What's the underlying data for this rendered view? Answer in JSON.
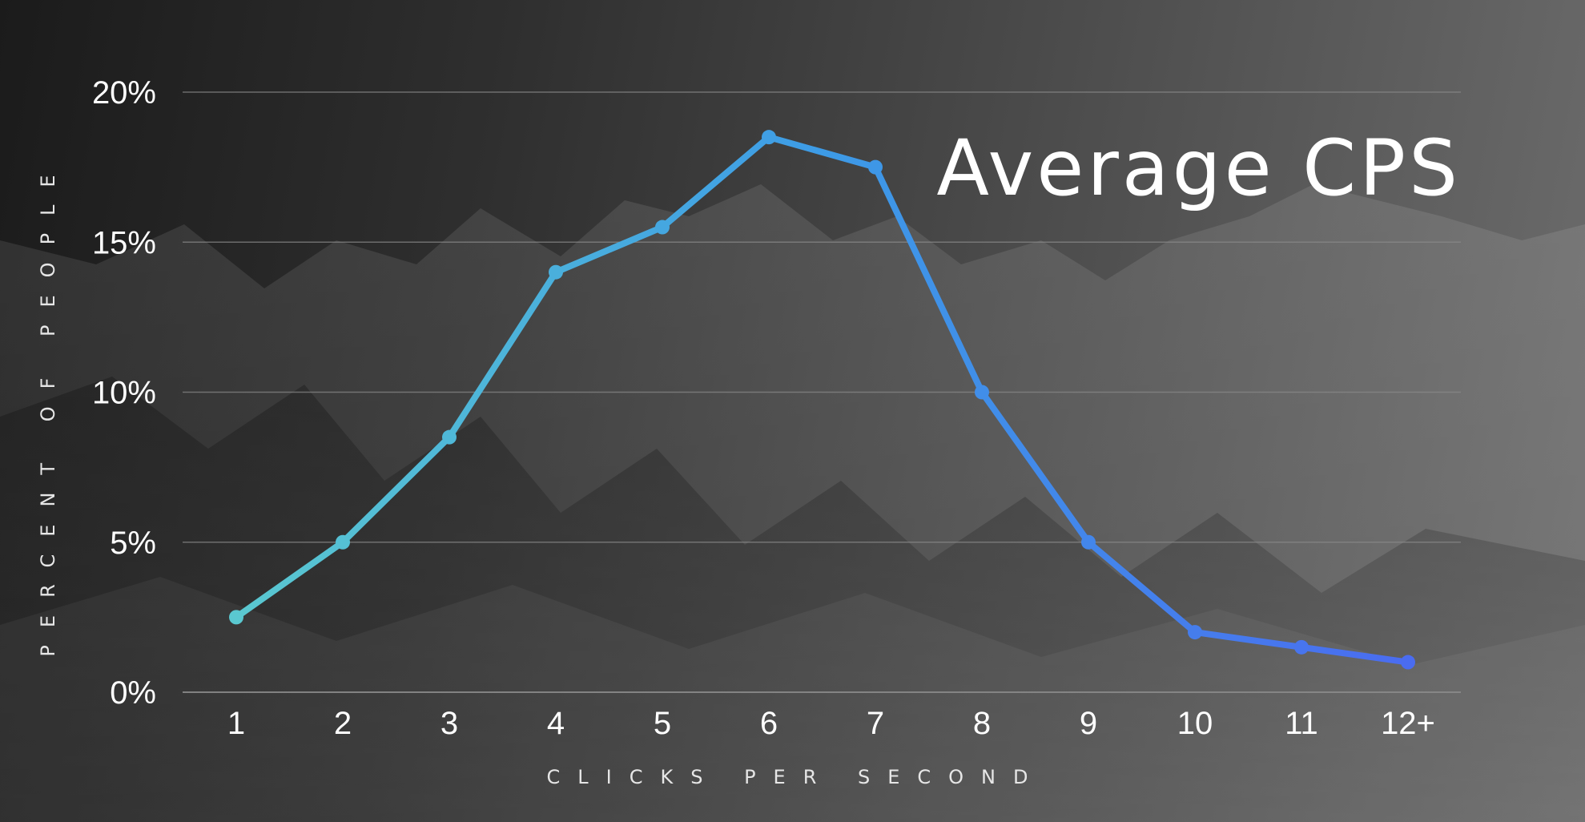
{
  "chart_data": {
    "type": "line",
    "title": "Average CPS",
    "xlabel": "CLICKS PER SECOND",
    "ylabel": "PERCENT OF PEOPLE",
    "categories": [
      "1",
      "2",
      "3",
      "4",
      "5",
      "6",
      "7",
      "8",
      "9",
      "10",
      "11",
      "12+"
    ],
    "series": [
      {
        "values": [
          2.5,
          5.0,
          8.5,
          14.0,
          15.5,
          18.5,
          17.5,
          10.0,
          5.0,
          2.0,
          1.5,
          1.0
        ]
      }
    ],
    "y_ticks": [
      "0%",
      "5%",
      "10%",
      "15%",
      "20%"
    ],
    "ylim": [
      0,
      20
    ],
    "grid": true,
    "legend": "none",
    "colors": {
      "line_start": "#5ac8d0",
      "line_mid": "#3d9be6",
      "line_end": "#4a6cf0",
      "grid": "#8a8a8a",
      "text": "#ffffff"
    }
  }
}
